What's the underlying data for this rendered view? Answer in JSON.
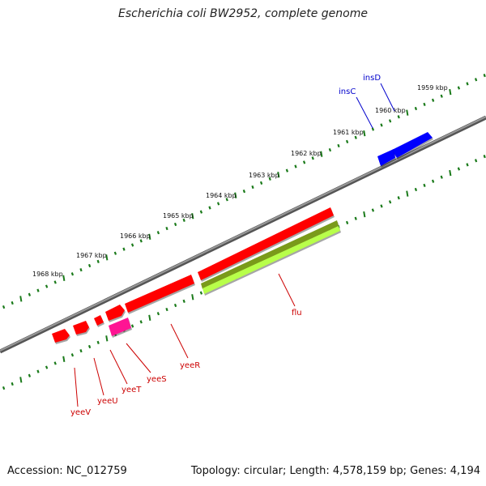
{
  "title": "Escherichia coli BW2952, complete genome",
  "footer": {
    "accession": "Accession: NC_012759",
    "summary": "Topology: circular; Length: 4,578,159 bp; Genes: 4,194"
  },
  "colors": {
    "backbone": "#808080",
    "tick": "#1a7a1a",
    "forward_gene": "#ff0000",
    "blue_gene": "#0000ff",
    "magenta_gene": "#ff1493",
    "olive_gene": "#7a9a1a",
    "lime_gene": "#b8ff4a"
  },
  "kbp_labels": [
    {
      "kbp": 1959,
      "text": "1959 kbp"
    },
    {
      "kbp": 1960,
      "text": "1960 kbp"
    },
    {
      "kbp": 1961,
      "text": "1961 kbp"
    },
    {
      "kbp": 1962,
      "text": "1962 kbp"
    },
    {
      "kbp": 1963,
      "text": "1963 kbp"
    },
    {
      "kbp": 1964,
      "text": "1964 kbp"
    },
    {
      "kbp": 1965,
      "text": "1965 kbp"
    },
    {
      "kbp": 1966,
      "text": "1966 kbp"
    },
    {
      "kbp": 1967,
      "text": "1967 kbp"
    },
    {
      "kbp": 1968,
      "text": "1968 kbp"
    }
  ],
  "gene_labels": [
    {
      "id": "insD",
      "text": "insD",
      "color": "#0000cc"
    },
    {
      "id": "insC",
      "text": "insC",
      "color": "#0000cc"
    },
    {
      "id": "flu",
      "text": "flu",
      "color": "#cc0000"
    },
    {
      "id": "yeeR",
      "text": "yeeR",
      "color": "#cc0000"
    },
    {
      "id": "yeeS",
      "text": "yeeS",
      "color": "#cc0000"
    },
    {
      "id": "yeeT",
      "text": "yeeT",
      "color": "#cc0000"
    },
    {
      "id": "yeeU",
      "text": "yeeU",
      "color": "#cc0000"
    },
    {
      "id": "yeeV",
      "text": "yeeV",
      "color": "#cc0000"
    }
  ]
}
